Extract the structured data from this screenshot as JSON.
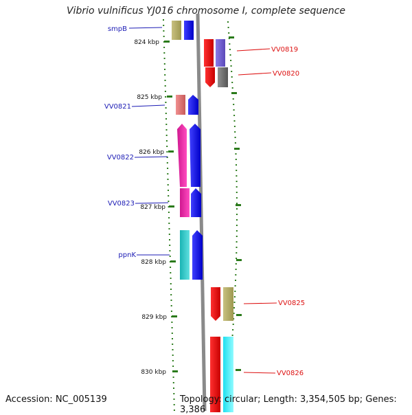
{
  "title": "Vibrio vulnificus YJ016 chromosome I, complete sequence",
  "footer": {
    "accession": "Accession: NC_005139",
    "summary": "Topology: circular; Length: 3,354,505 bp; Genes: 3,386"
  },
  "scale": {
    "ticks": [
      {
        "label": "824 kbp",
        "kbp": 824
      },
      {
        "label": "825 kbp",
        "kbp": 825
      },
      {
        "label": "826 kbp",
        "kbp": 826
      },
      {
        "label": "827 kbp",
        "kbp": 827
      },
      {
        "label": "828 kbp",
        "kbp": 828
      },
      {
        "label": "829 kbp",
        "kbp": 829
      },
      {
        "label": "830 kbp",
        "kbp": 830
      }
    ]
  },
  "genes": {
    "left": [
      {
        "name": "smpB",
        "color": "#1a1ab4"
      },
      {
        "name": "VV0821",
        "color": "#1a1ab4"
      },
      {
        "name": "VV0822",
        "color": "#1a1ab4"
      },
      {
        "name": "VV0823",
        "color": "#1a1ab4"
      },
      {
        "name": "ppnK",
        "color": "#1a1ab4"
      }
    ],
    "right": [
      {
        "name": "VV0819",
        "color": "#dd1111"
      },
      {
        "name": "VV0820",
        "color": "#dd1111"
      },
      {
        "name": "VV0825",
        "color": "#dd1111"
      },
      {
        "name": "VV0826",
        "color": "#dd1111"
      }
    ]
  },
  "colors": {
    "tick": "#2a7a1a",
    "backbone": "#888888",
    "forward_strand": "#0000ee",
    "reverse_strand": "#ee0000"
  }
}
